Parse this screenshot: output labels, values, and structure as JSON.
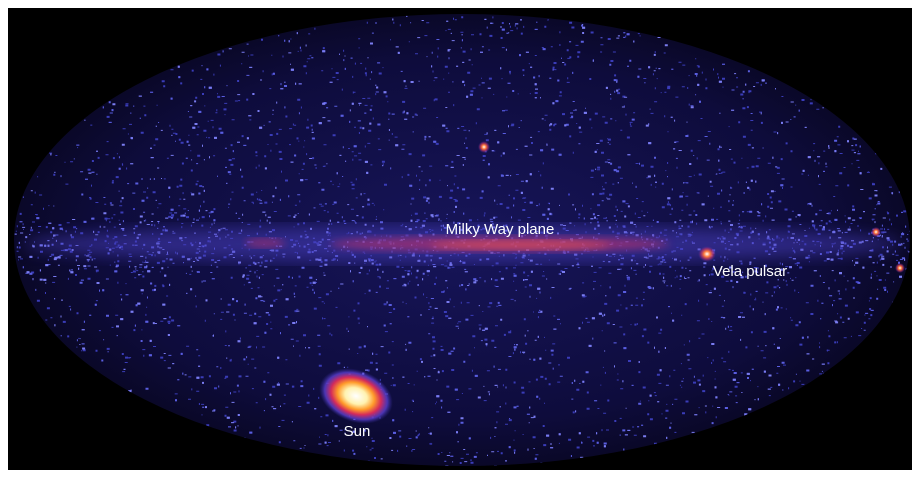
{
  "labels": [
    "Milky Way plane",
    "Vela pulsar",
    "Sun"
  ]
}
